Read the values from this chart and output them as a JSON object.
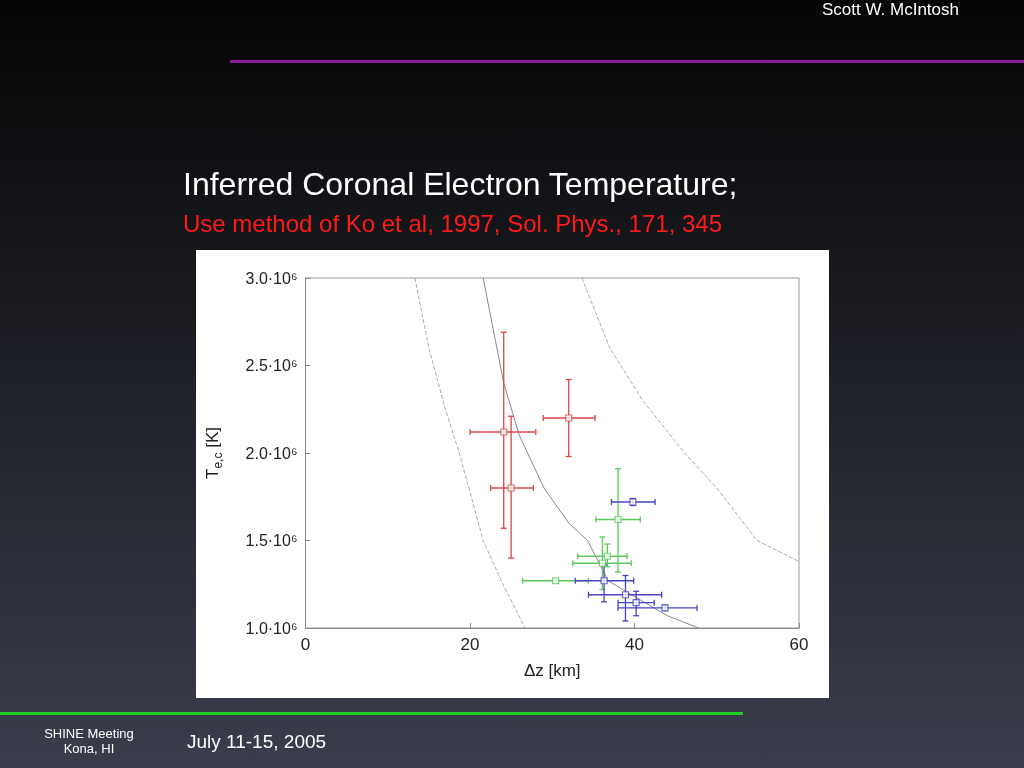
{
  "chart_data": {
    "type": "scatter",
    "title": "Inferred Coronal Electron Temperature;",
    "subtitle": "Use method of Ko et al, 1997, Sol. Phys., 171, 345",
    "xlabel": "Δz [km]",
    "ylabel": "T$_{e,c}$ [K]",
    "annotations": [
      "Scott W. McIntosh",
      "SHINE Meeting\nKona, HI",
      "July 11-15, 2005"
    ],
    "xlim": [
      0,
      60
    ],
    "ylim": [
      1000000,
      3000000
    ],
    "xticks": [
      0,
      20,
      40,
      60
    ],
    "yticks": [
      {
        "value": 1000000,
        "label": "1.0·10⁶"
      },
      {
        "value": 1500000,
        "label": "1.5·10⁶"
      },
      {
        "value": 2000000,
        "label": "2.0·10⁶"
      },
      {
        "value": 2500000,
        "label": "2.5·10⁶"
      },
      {
        "value": 3000000,
        "label": "3.0·10⁶"
      }
    ],
    "grid": false,
    "marker": "square",
    "series": [
      {
        "color": "#d84848",
        "x": [
          24.1,
          25.0,
          32.0
        ],
        "values": [
          2120000,
          1800000,
          2200000
        ],
        "errors": [
          [
            1570000,
            2690000
          ],
          [
            1400000,
            2210000
          ],
          [
            1980000,
            2420000
          ]
        ],
        "xerrors": [
          [
            20.0,
            28.0
          ],
          [
            22.5,
            27.7
          ],
          [
            28.9,
            35.2
          ]
        ]
      },
      {
        "color": "#5cc85c",
        "x": [
          38.0,
          36.7,
          36.1,
          30.4
        ],
        "values": [
          1620000,
          1410000,
          1370000,
          1270000
        ],
        "errors": [
          [
            1320000,
            1910000
          ],
          [
            1350000,
            1480000
          ],
          [
            1220000,
            1520000
          ],
          [
            1260000,
            1280000
          ]
        ],
        "xerrors": [
          [
            35.3,
            40.7
          ],
          [
            33.1,
            39.1
          ],
          [
            32.5,
            39.6
          ],
          [
            26.4,
            34.4
          ]
        ]
      },
      {
        "color": "#4646c0",
        "x": [
          39.8,
          36.3,
          38.9,
          40.2,
          43.7
        ],
        "values": [
          1720000,
          1270000,
          1190000,
          1145000,
          1115000
        ],
        "errors": [
          [
            1700000,
            1740000
          ],
          [
            1150000,
            1360000
          ],
          [
            1040000,
            1300000
          ],
          [
            1070000,
            1210000
          ],
          [
            1100000,
            1130000
          ]
        ],
        "xerrors": [
          [
            37.2,
            42.5
          ],
          [
            32.8,
            39.9
          ],
          [
            34.4,
            43.3
          ],
          [
            38.0,
            42.4
          ],
          [
            38.0,
            47.6
          ]
        ]
      },
      {
        "type": "line",
        "color": "#888888",
        "line_style": "solid",
        "marker": "none",
        "x": [
          21.6,
          24.1,
          26.0,
          29.0,
          32.0,
          34.3,
          36.8,
          40.0,
          44.0,
          47.8
        ],
        "values": [
          3000000,
          2400000,
          2100000,
          1800000,
          1600000,
          1500000,
          1270000,
          1180000,
          1070000,
          1000000
        ]
      },
      {
        "type": "line",
        "color": "#aaaaaa",
        "line_style": "dashed",
        "marker": "none",
        "x": [
          13.3,
          15.0,
          17.0,
          18.7,
          21.6,
          24.0,
          26.7
        ],
        "values": [
          3000000,
          2600000,
          2250000,
          2000000,
          1500000,
          1250000,
          1000000
        ]
      },
      {
        "type": "line",
        "color": "#aaaaaa",
        "line_style": "dashed",
        "marker": "none",
        "x": [
          33.6,
          37.0,
          41.0,
          46.1,
          50.0,
          54.9,
          60.0
        ],
        "values": [
          3000000,
          2600000,
          2300000,
          2000000,
          1800000,
          1500000,
          1380000
        ]
      }
    ]
  }
}
